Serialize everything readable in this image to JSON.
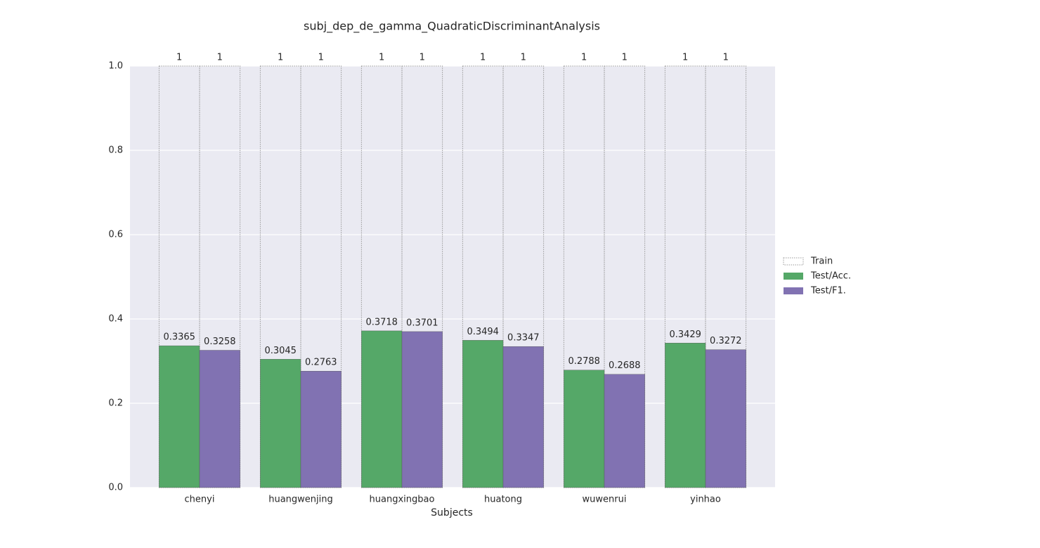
{
  "chart_data": {
    "type": "bar",
    "title": "subj_dep_de_gamma_QuadraticDiscriminantAnalysis",
    "xlabel": "Subjects",
    "categories": [
      "chenyi",
      "huangwenjing",
      "huangxingbao",
      "huatong",
      "wuwenrui",
      "yinhao"
    ],
    "series": [
      {
        "name": "Train",
        "color": "none",
        "edgecolor": "#999999",
        "linestyle": "dotted",
        "values_acc": [
          1,
          1,
          1,
          1,
          1,
          1
        ],
        "values_f1": [
          1,
          1,
          1,
          1,
          1,
          1
        ]
      },
      {
        "name": "Test/Acc.",
        "color": "#55a868",
        "values": [
          0.3365,
          0.3045,
          0.3718,
          0.3494,
          0.2788,
          0.3429
        ]
      },
      {
        "name": "Test/F1.",
        "color": "#8172b2",
        "values": [
          0.3258,
          0.2763,
          0.3701,
          0.3347,
          0.2688,
          0.3272
        ]
      }
    ],
    "ylim": [
      0,
      1
    ],
    "yticks": [
      {
        "value": 0,
        "label": "0.0"
      },
      0.2,
      0.4,
      0.6,
      0.8,
      {
        "value": 1,
        "label": "1.0"
      }
    ],
    "grid": true,
    "legend": "right"
  }
}
